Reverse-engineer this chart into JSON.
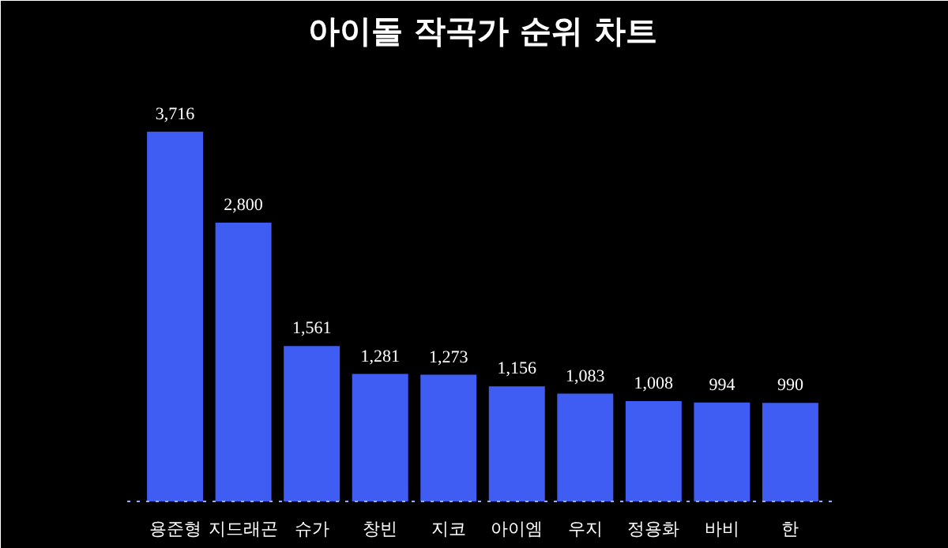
{
  "chart_data": {
    "type": "bar",
    "title": "아이돌 작곡가 순위 차트",
    "categories": [
      "용준형",
      "지드래곤",
      "슈가",
      "창빈",
      "지코",
      "아이엠",
      "우지",
      "정용화",
      "바비",
      "한"
    ],
    "values": [
      3716,
      2800,
      1561,
      1281,
      1273,
      1156,
      1083,
      1008,
      994,
      990
    ],
    "value_labels": [
      "3,716",
      "2,800",
      "1,561",
      "1,281",
      "1,273",
      "1,156",
      "1,083",
      "1,008",
      "994",
      "990"
    ],
    "color": "#3f5cf3",
    "grid": false
  }
}
